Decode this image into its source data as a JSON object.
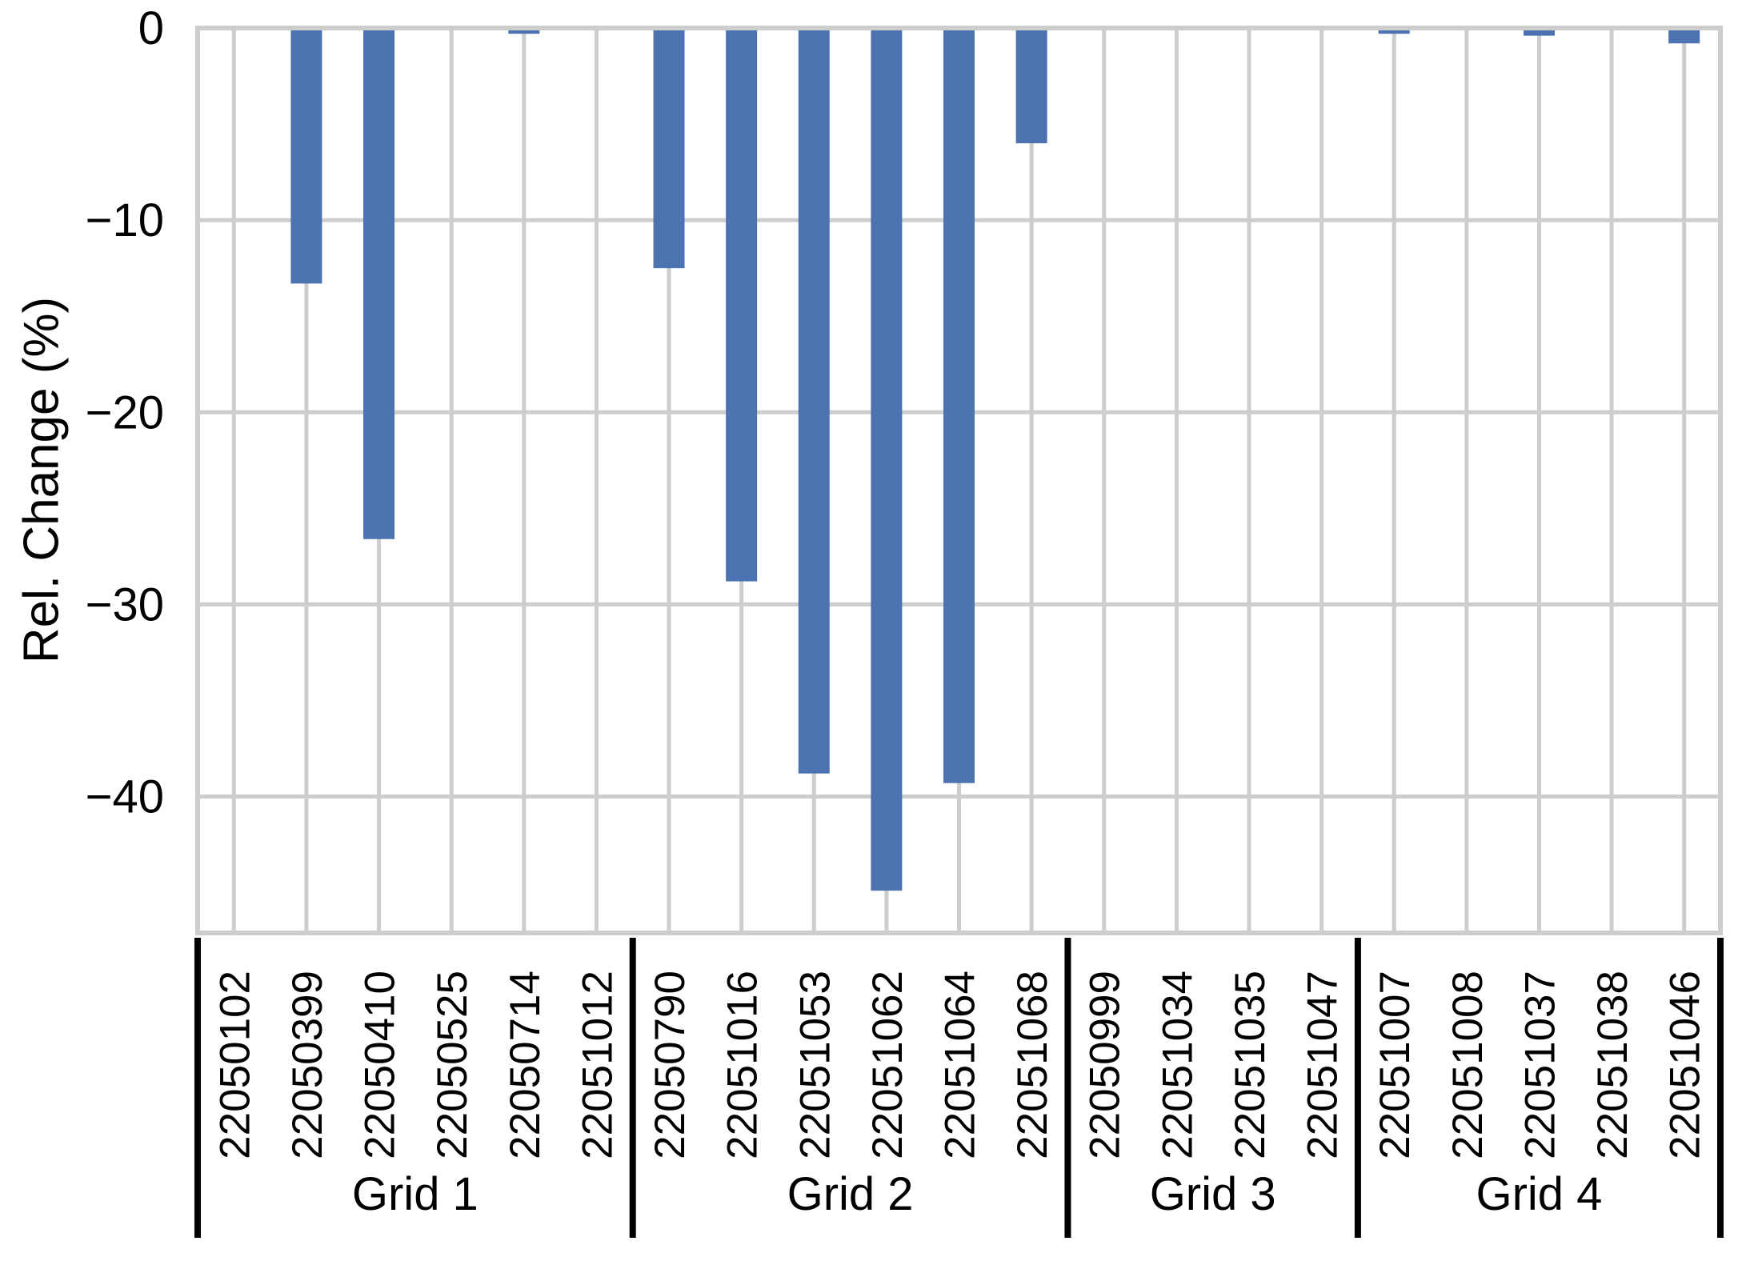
{
  "page": {
    "background": "#ffffff"
  },
  "chart_data": {
    "type": "bar",
    "title": "",
    "xlabel": "",
    "ylabel": "Rel. Change (%)",
    "ylim": [
      -47.1,
      0
    ],
    "yticks": [
      0,
      -10,
      -20,
      -30,
      -40
    ],
    "ytick_labels": [
      "0",
      "−10",
      "−20",
      "−30",
      "−40"
    ],
    "grid": true,
    "legend_position": "none",
    "bar_color": "#4C72B0",
    "grid_color": "#CDCDCD",
    "separator_color": "#000000",
    "axis_text_color": "#000000",
    "groups": [
      {
        "label": "Grid 1",
        "categories": [
          "22050102",
          "22050399",
          "22050410",
          "22050525",
          "22050714",
          "22051012"
        ],
        "values": [
          0,
          -13.3,
          -26.6,
          0,
          -0.3,
          0
        ]
      },
      {
        "label": "Grid 2",
        "categories": [
          "22050790",
          "22051016",
          "22051053",
          "22051062",
          "22051064",
          "22051068"
        ],
        "values": [
          -12.5,
          -28.8,
          -38.8,
          -44.9,
          -39.3,
          -6.0
        ]
      },
      {
        "label": "Grid 3",
        "categories": [
          "22050999",
          "22051034",
          "22051035",
          "22051047"
        ],
        "values": [
          0,
          0,
          0,
          0
        ]
      },
      {
        "label": "Grid 4",
        "categories": [
          "22051007",
          "22051008",
          "22051037",
          "22051038",
          "22051046"
        ],
        "values": [
          -0.3,
          0,
          -0.4,
          0,
          -0.8
        ]
      }
    ]
  }
}
